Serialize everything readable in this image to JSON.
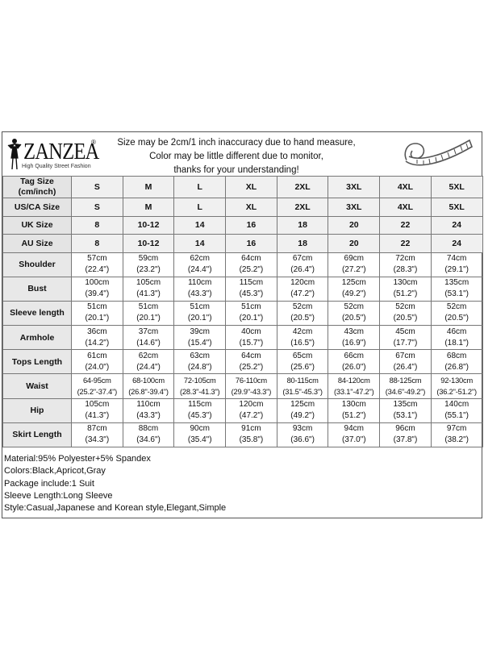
{
  "logo": {
    "brand": "ZANZEA",
    "registered": "®",
    "tagline": "High Quality Street Fashion"
  },
  "notice": [
    "Size may be 2cm/1 inch inaccuracy due to hand measure,",
    "Color may be little different due to monitor,",
    "thanks for your understanding!"
  ],
  "icons": {
    "logo_figure": "woman-silhouette-icon",
    "measure": "tape-measure-icon"
  },
  "table": {
    "size_rows": [
      {
        "label": "Tag Size (cm/inch)",
        "label_lines": [
          "Tag Size",
          "(cm/inch)"
        ],
        "values": [
          "S",
          "M",
          "L",
          "XL",
          "2XL",
          "3XL",
          "4XL",
          "5XL"
        ]
      },
      {
        "label": "US/CA Size",
        "values": [
          "S",
          "M",
          "L",
          "XL",
          "2XL",
          "3XL",
          "4XL",
          "5XL"
        ]
      },
      {
        "label": "UK Size",
        "values": [
          "8",
          "10-12",
          "14",
          "16",
          "18",
          "20",
          "22",
          "24"
        ]
      },
      {
        "label": "AU Size",
        "values": [
          "8",
          "10-12",
          "14",
          "16",
          "18",
          "20",
          "22",
          "24"
        ]
      }
    ],
    "measure_rows": [
      {
        "label": "Shoulder",
        "cm": [
          "57cm",
          "59cm",
          "62cm",
          "64cm",
          "67cm",
          "69cm",
          "72cm",
          "74cm"
        ],
        "inch": [
          "(22.4\")",
          "(23.2\")",
          "(24.4\")",
          "(25.2\")",
          "(26.4\")",
          "(27.2\")",
          "(28.3\")",
          "(29.1\")"
        ]
      },
      {
        "label": "Bust",
        "cm": [
          "100cm",
          "105cm",
          "110cm",
          "115cm",
          "120cm",
          "125cm",
          "130cm",
          "135cm"
        ],
        "inch": [
          "(39.4\")",
          "(41.3\")",
          "(43.3\")",
          "(45.3\")",
          "(47.2\")",
          "(49.2\")",
          "(51.2\")",
          "(53.1\")"
        ]
      },
      {
        "label": "Sleeve length",
        "cm": [
          "51cm",
          "51cm",
          "51cm",
          "51cm",
          "52cm",
          "52cm",
          "52cm",
          "52cm"
        ],
        "inch": [
          "(20.1\")",
          "(20.1\")",
          "(20.1\")",
          "(20.1\")",
          "(20.5\")",
          "(20.5\")",
          "(20.5\")",
          "(20.5\")"
        ]
      },
      {
        "label": "Armhole",
        "cm": [
          "36cm",
          "37cm",
          "39cm",
          "40cm",
          "42cm",
          "43cm",
          "45cm",
          "46cm"
        ],
        "inch": [
          "(14.2\")",
          "(14.6\")",
          "(15.4\")",
          "(15.7\")",
          "(16.5\")",
          "(16.9\")",
          "(17.7\")",
          "(18.1\")"
        ]
      },
      {
        "label": "Tops Length",
        "cm": [
          "61cm",
          "62cm",
          "63cm",
          "64cm",
          "65cm",
          "66cm",
          "67cm",
          "68cm"
        ],
        "inch": [
          "(24.0\")",
          "(24.4\")",
          "(24.8\")",
          "(25.2\")",
          "(25.6\")",
          "(26.0\")",
          "(26.4\")",
          "(26.8\")"
        ]
      },
      {
        "label": "Waist",
        "cm": [
          "64-95cm",
          "68-100cm",
          "72-105cm",
          "76-110cm",
          "80-115cm",
          "84-120cm",
          "88-125cm",
          "92-130cm"
        ],
        "inch": [
          "(25.2\"-37.4\")",
          "(26.8\"-39.4\")",
          "(28.3\"-41.3\")",
          "(29.9\"-43.3\")",
          "(31.5\"-45.3\")",
          "(33.1\"-47.2\")",
          "(34.6\"-49.2\")",
          "(36.2\"-51.2\")"
        ]
      },
      {
        "label": "Hip",
        "cm": [
          "105cm",
          "110cm",
          "115cm",
          "120cm",
          "125cm",
          "130cm",
          "135cm",
          "140cm"
        ],
        "inch": [
          "(41.3\")",
          "(43.3\")",
          "(45.3\")",
          "(47.2\")",
          "(49.2\")",
          "(51.2\")",
          "(53.1\")",
          "(55.1\")"
        ]
      },
      {
        "label": "Skirt Length",
        "cm": [
          "87cm",
          "88cm",
          "90cm",
          "91cm",
          "93cm",
          "94cm",
          "96cm",
          "97cm"
        ],
        "inch": [
          "(34.3\")",
          "(34.6\")",
          "(35.4\")",
          "(35.8\")",
          "(36.6\")",
          "(37.0\")",
          "(37.8\")",
          "(38.2\")"
        ]
      }
    ]
  },
  "notes": [
    "Material:95% Polyester+5% Spandex",
    "Colors:Black,Apricot,Gray",
    "Package include:1 Suit",
    "Sleeve Length:Long Sleeve",
    "Style:Casual,Japanese and Korean style,Elegant,Simple"
  ]
}
